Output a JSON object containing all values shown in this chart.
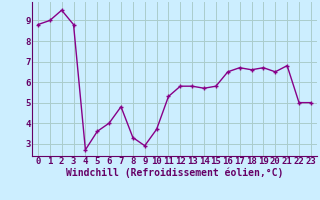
{
  "x": [
    0,
    1,
    2,
    3,
    4,
    5,
    6,
    7,
    8,
    9,
    10,
    11,
    12,
    13,
    14,
    15,
    16,
    17,
    18,
    19,
    20,
    21,
    22,
    23
  ],
  "y": [
    8.8,
    9.0,
    9.5,
    8.8,
    2.7,
    3.6,
    4.0,
    4.8,
    3.3,
    2.9,
    3.7,
    5.3,
    5.8,
    5.8,
    5.7,
    5.8,
    6.5,
    6.7,
    6.6,
    6.7,
    6.5,
    6.8,
    5.0,
    5.0
  ],
  "line_color": "#880088",
  "marker": "+",
  "bg_color": "#cceeff",
  "grid_color": "#aacccc",
  "xlabel": "Windchill (Refroidissement éolien,°C)",
  "xlim": [
    -0.5,
    23.5
  ],
  "ylim": [
    2.4,
    9.9
  ],
  "yticks": [
    3,
    4,
    5,
    6,
    7,
    8,
    9
  ],
  "xticks": [
    0,
    1,
    2,
    3,
    4,
    5,
    6,
    7,
    8,
    9,
    10,
    11,
    12,
    13,
    14,
    15,
    16,
    17,
    18,
    19,
    20,
    21,
    22,
    23
  ],
  "axis_label_color": "#660066",
  "tick_color": "#660066",
  "xlabel_fontsize": 7.0,
  "tick_fontsize": 6.5,
  "linewidth": 1.0,
  "markersize": 3.5,
  "markeredgewidth": 1.0
}
